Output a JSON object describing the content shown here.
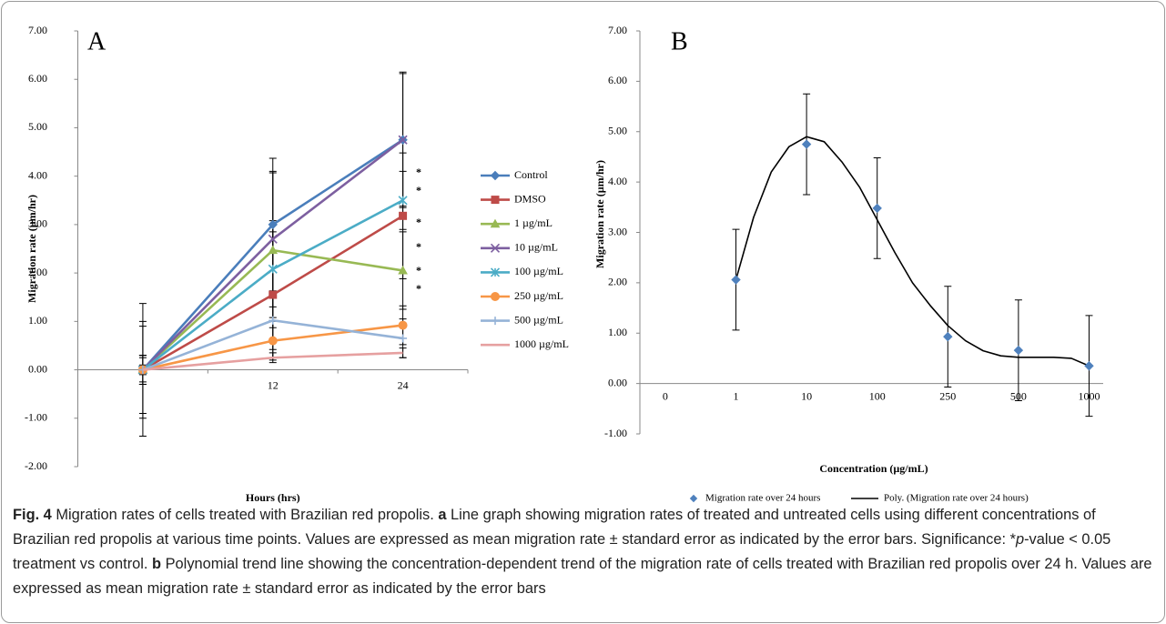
{
  "chart_data": [
    {
      "type": "line",
      "panel": "A",
      "ylabel": "Migration rate (µm/hr)",
      "xlabel": "Hours (hrs)",
      "categories": [
        null,
        "12",
        "24"
      ],
      "ylim": [
        -2,
        7
      ],
      "yticks": [
        {
          "value": -2,
          "label": "-2.00"
        },
        {
          "value": -1,
          "label": "-1.00"
        },
        {
          "value": 0,
          "label": "0.00"
        },
        {
          "value": 1,
          "label": "1.00"
        },
        {
          "value": 2,
          "label": "2.00"
        },
        {
          "value": 3,
          "label": "3.00"
        },
        {
          "value": 4,
          "label": "4.00"
        },
        {
          "value": 5,
          "label": "5.00"
        },
        {
          "value": 6,
          "label": "6.00"
        },
        {
          "value": 7,
          "label": "7.00"
        }
      ],
      "legend": "right",
      "annotations": [
        "*",
        "*",
        "*",
        "*",
        "*",
        "*"
      ],
      "series": [
        {
          "name": "Control",
          "color": "#4a7ebb",
          "marker": "diamond",
          "values": [
            0,
            3.0,
            4.75
          ],
          "errors": [
            1.37,
            1.37,
            1.37
          ]
        },
        {
          "name": "DMSO",
          "color": "#be4b48",
          "marker": "square",
          "values": [
            0,
            1.55,
            3.18
          ],
          "errors": [
            1.0,
            1.3,
            1.3
          ]
        },
        {
          "name": "1 µg/mL",
          "color": "#98b954",
          "marker": "triangle",
          "values": [
            0,
            2.47,
            2.05
          ],
          "errors": [
            0.9,
            1.6,
            0.8
          ]
        },
        {
          "name": "10 µg/mL",
          "color": "#7d5fa0",
          "marker": "cross",
          "values": [
            0,
            2.7,
            4.75
          ],
          "errors": [
            0.3,
            1.4,
            1.4
          ]
        },
        {
          "name": "100 µg/mL",
          "color": "#4bacc6",
          "marker": "star",
          "values": [
            0,
            2.08,
            3.5
          ],
          "errors": [
            0.3,
            1.0,
            0.6
          ]
        },
        {
          "name": "250 µg/mL",
          "color": "#f79646",
          "marker": "circle",
          "values": [
            0,
            0.6,
            0.92
          ],
          "errors": [
            0.25,
            0.4,
            0.4
          ]
        },
        {
          "name": "500 µg/mL",
          "color": "#95b3d7",
          "marker": "plus",
          "values": [
            0,
            1.02,
            0.65
          ],
          "errors": [
            0.3,
            0.6,
            0.4
          ]
        },
        {
          "name": "1000 µg/mL",
          "color": "#e6a0a0",
          "marker": "none",
          "values": [
            0,
            0.25,
            0.35
          ],
          "errors": [
            0.1,
            0.1,
            0.1
          ]
        }
      ]
    },
    {
      "type": "scatter",
      "panel": "B",
      "ylabel": "Migration rate (µm/hr)",
      "xlabel": "Concentration (µg/mL)",
      "xlim": [
        -0.36,
        6.2
      ],
      "ylim": [
        -1,
        7
      ],
      "xticks": [
        0,
        1,
        {
          "value": 2,
          "label": "10"
        },
        {
          "value": 3,
          "label": "100"
        },
        {
          "value": 4,
          "label": "250"
        },
        {
          "value": 5,
          "label": "500"
        },
        {
          "value": 6,
          "label": "1000"
        }
      ],
      "yticks": [
        {
          "value": -1,
          "label": "-1.00"
        },
        {
          "value": 0,
          "label": "0.00"
        },
        {
          "value": 1,
          "label": "1.00"
        },
        {
          "value": 2,
          "label": "2.00"
        },
        {
          "value": 3,
          "label": "3.00"
        },
        {
          "value": 4,
          "label": "4.00"
        },
        {
          "value": 5,
          "label": "5.00"
        },
        {
          "value": 6,
          "label": "6.00"
        },
        {
          "value": 7,
          "label": "7.00"
        }
      ],
      "legend": "bottom",
      "series": [
        {
          "name": "Migration rate over 24 hours",
          "color": "#4f81bd",
          "x": [
            1,
            2,
            3,
            4,
            5,
            6
          ],
          "values": [
            2.06,
            4.75,
            3.48,
            0.93,
            0.66,
            0.35
          ],
          "errors": [
            1.0,
            1.0,
            1.0,
            1.0,
            1.0,
            1.0
          ]
        }
      ],
      "trendline": {
        "name": "Poly. (Migration rate over 24 hours)",
        "color": "#000000",
        "x": [
          1,
          1.25,
          1.5,
          1.75,
          2,
          2.25,
          2.5,
          2.75,
          3,
          3.25,
          3.5,
          3.75,
          4,
          4.25,
          4.5,
          4.75,
          5,
          5.25,
          5.5,
          5.75,
          6
        ],
        "values": [
          2.06,
          3.3,
          4.2,
          4.7,
          4.9,
          4.8,
          4.4,
          3.9,
          3.25,
          2.6,
          2.0,
          1.55,
          1.15,
          0.85,
          0.65,
          0.55,
          0.52,
          0.52,
          0.52,
          0.5,
          0.35
        ]
      }
    }
  ],
  "caption": {
    "label": "Fig. 4",
    "parts": [
      "Migration rates of cells treated with Brazilian red propolis.",
      "a",
      "Line graph showing migration rates of treated and untreated cells using different concentrations of Brazilian red propolis at various time points. Values are expressed as mean migration rate ± standard error as indicated by the error bars. Significance: *",
      "p",
      "-value < 0.05 treatment vs control.",
      "b",
      "Polynomial trend line showing the concentration-dependent trend of the migration rate of cells treated with Brazilian red propolis over 24 h. Values are expressed as mean migration rate ± standard error as indicated by the error bars"
    ]
  }
}
